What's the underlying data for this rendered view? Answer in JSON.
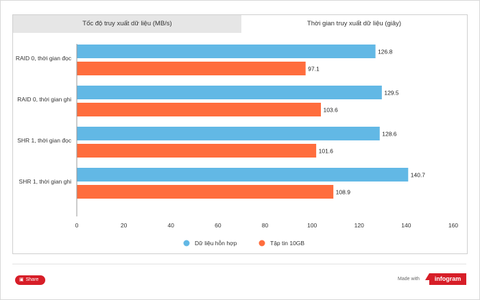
{
  "tabs": [
    {
      "label": "Tốc độ truy xuất dữ liệu (MB/s)",
      "active": false
    },
    {
      "label": "Thời gian truy xuất dữ liệu (giây)",
      "active": true
    }
  ],
  "chart_data": {
    "type": "bar",
    "orientation": "horizontal",
    "categories": [
      "RAID 0, thời gian đọc",
      "RAID 0, thời gian ghi",
      "SHR 1, thời gian đọc",
      "SHR 1, thời gian ghi"
    ],
    "series": [
      {
        "name": "Dữ liệu hỗn hợp",
        "color": "#62b8e5",
        "values": [
          126.8,
          129.5,
          128.6,
          140.7
        ]
      },
      {
        "name": "Tập tin 10GB",
        "color": "#ff6d3d",
        "values": [
          97.1,
          103.6,
          101.6,
          108.9
        ]
      }
    ],
    "xlim": [
      0,
      160
    ],
    "xticks": [
      0,
      20,
      40,
      60,
      80,
      100,
      120,
      140,
      160
    ],
    "grid": false,
    "legend": "bottom-center"
  },
  "footer": {
    "share_label": "Share",
    "made_with": "Made with",
    "brand": "infogram"
  }
}
